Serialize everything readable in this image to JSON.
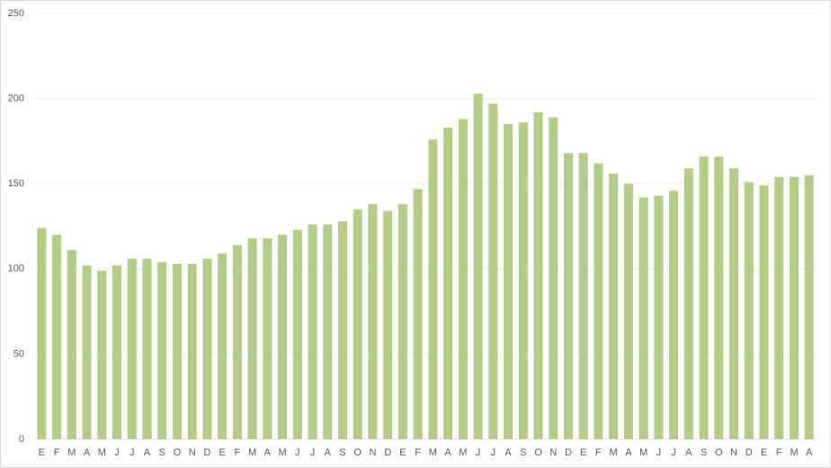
{
  "chart_data": {
    "type": "bar",
    "categories": [
      "E",
      "F",
      "M",
      "A",
      "M",
      "J",
      "J",
      "A",
      "S",
      "O",
      "N",
      "D",
      "E",
      "F",
      "M",
      "A",
      "M",
      "J",
      "J",
      "A",
      "S",
      "O",
      "N",
      "D",
      "E",
      "F",
      "M",
      "A",
      "M",
      "J",
      "J",
      "A",
      "S",
      "O",
      "N",
      "D",
      "E",
      "F",
      "M",
      "A",
      "M",
      "J",
      "J",
      "A",
      "S",
      "O",
      "N",
      "D",
      "E",
      "F",
      "M",
      "A"
    ],
    "values": [
      124,
      120,
      111,
      102,
      99,
      102,
      106,
      106,
      104,
      103,
      103,
      106,
      109,
      114,
      118,
      118,
      120,
      123,
      126,
      126,
      128,
      135,
      138,
      134,
      138,
      147,
      176,
      183,
      188,
      203,
      197,
      185,
      186,
      192,
      189,
      168,
      168,
      162,
      156,
      150,
      142,
      143,
      146,
      159,
      166,
      166,
      159,
      151,
      149,
      154,
      154,
      155
    ],
    "color": "#b3cc86",
    "ylim": [
      0,
      250
    ],
    "yticks": [
      0,
      50,
      100,
      150,
      200,
      250
    ],
    "grid": true
  }
}
